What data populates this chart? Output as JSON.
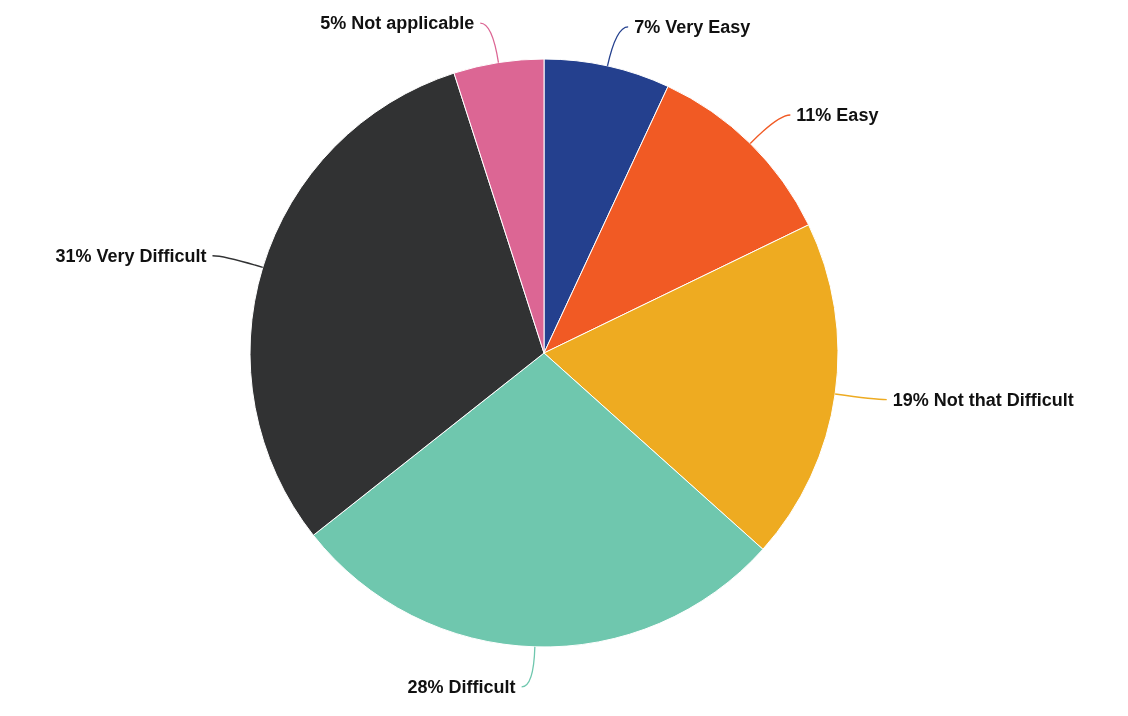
{
  "chart_data": {
    "type": "pie",
    "categories": [
      "Very Easy",
      "Easy",
      "Not that Difficult",
      "Difficult",
      "Very Difficult",
      "Not applicable"
    ],
    "values": [
      7,
      11,
      19,
      28,
      31,
      5
    ],
    "value_labels": [
      "7%",
      "11%",
      "19%",
      "28%",
      "31%",
      "5%"
    ],
    "colors": [
      "#24408e",
      "#f15a24",
      "#eeab21",
      "#6fc7ae",
      "#313233",
      "#dc6694"
    ]
  }
}
